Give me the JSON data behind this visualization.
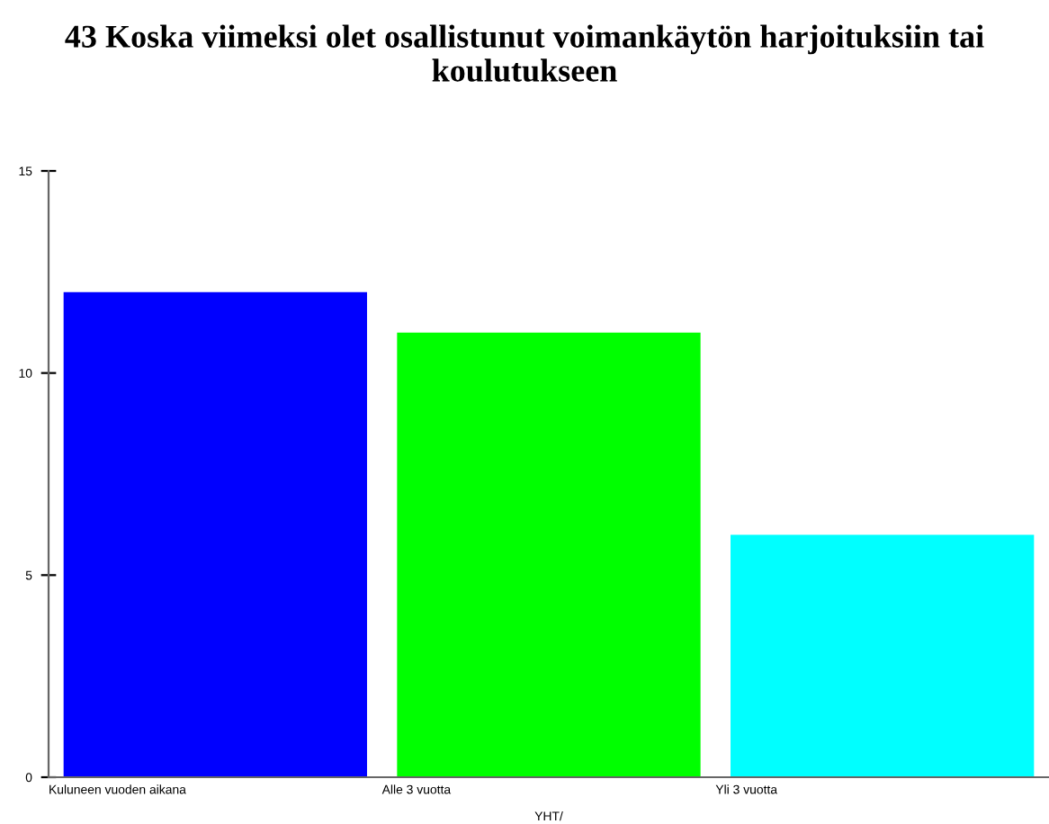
{
  "chart_data": {
    "type": "bar",
    "title": "43 Koska viimeksi olet osallistunut voimankäytön harjoituksiin tai koulutukseen",
    "categories": [
      "Kuluneen vuoden aikana",
      "Alle 3 vuotta",
      "Yli 3 vuotta"
    ],
    "values": [
      12,
      11,
      6
    ],
    "colors": [
      "#0000ff",
      "#00ff00",
      "#00ffff"
    ],
    "xlabel": "YHT/",
    "ylim": [
      0,
      15
    ],
    "yticks": [
      0,
      5,
      10,
      15
    ],
    "grid": false,
    "legend": false
  }
}
